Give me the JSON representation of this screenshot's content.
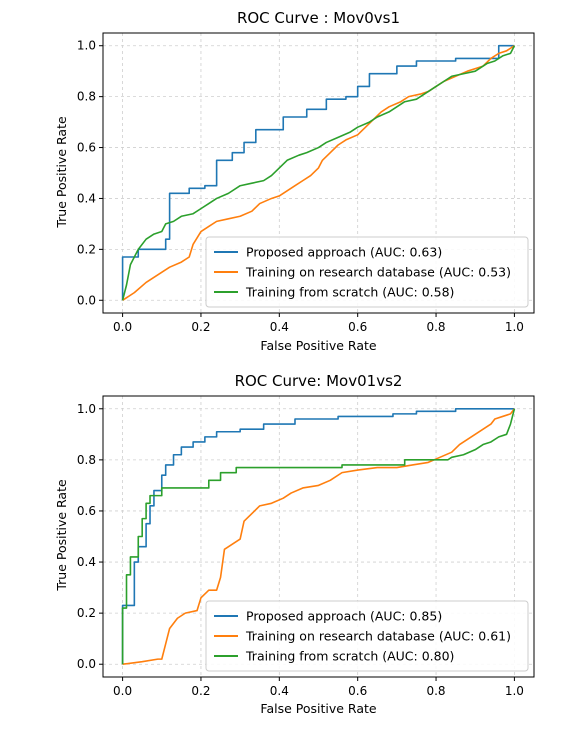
{
  "chart_data": [
    {
      "type": "line",
      "title": "ROC Curve : Mov0vs1",
      "xlabel": "False Positive Rate",
      "ylabel": "True Positive Rate",
      "xlim": [
        -0.05,
        1.05
      ],
      "ylim": [
        -0.05,
        1.05
      ],
      "grid": true,
      "legend_position": "lower-right",
      "xticks": [
        "0.0",
        "0.2",
        "0.4",
        "0.6",
        "0.8",
        "1.0"
      ],
      "yticks": [
        "0.0",
        "0.2",
        "0.4",
        "0.6",
        "0.8",
        "1.0"
      ],
      "series": [
        {
          "name": "Proposed approach (AUC: 0.63)",
          "color": "#1f77b4",
          "points": [
            [
              0,
              0
            ],
            [
              0,
              0.17
            ],
            [
              0.04,
              0.17
            ],
            [
              0.04,
              0.2
            ],
            [
              0.11,
              0.2
            ],
            [
              0.11,
              0.24
            ],
            [
              0.12,
              0.24
            ],
            [
              0.12,
              0.42
            ],
            [
              0.17,
              0.42
            ],
            [
              0.17,
              0.44
            ],
            [
              0.21,
              0.44
            ],
            [
              0.21,
              0.45
            ],
            [
              0.24,
              0.45
            ],
            [
              0.24,
              0.55
            ],
            [
              0.28,
              0.55
            ],
            [
              0.28,
              0.58
            ],
            [
              0.31,
              0.58
            ],
            [
              0.31,
              0.62
            ],
            [
              0.34,
              0.62
            ],
            [
              0.34,
              0.67
            ],
            [
              0.41,
              0.67
            ],
            [
              0.41,
              0.72
            ],
            [
              0.47,
              0.72
            ],
            [
              0.47,
              0.75
            ],
            [
              0.52,
              0.75
            ],
            [
              0.52,
              0.79
            ],
            [
              0.57,
              0.79
            ],
            [
              0.57,
              0.8
            ],
            [
              0.6,
              0.8
            ],
            [
              0.6,
              0.84
            ],
            [
              0.63,
              0.84
            ],
            [
              0.63,
              0.89
            ],
            [
              0.7,
              0.89
            ],
            [
              0.7,
              0.92
            ],
            [
              0.75,
              0.92
            ],
            [
              0.75,
              0.94
            ],
            [
              0.85,
              0.94
            ],
            [
              0.85,
              0.95
            ],
            [
              0.96,
              0.95
            ],
            [
              0.96,
              1.0
            ],
            [
              1.0,
              1.0
            ]
          ]
        },
        {
          "name": "Training on research database (AUC: 0.53)",
          "color": "#ff7f0e",
          "points": [
            [
              0,
              0
            ],
            [
              0.03,
              0.03
            ],
            [
              0.06,
              0.07
            ],
            [
              0.09,
              0.1
            ],
            [
              0.12,
              0.13
            ],
            [
              0.15,
              0.15
            ],
            [
              0.17,
              0.17
            ],
            [
              0.18,
              0.22
            ],
            [
              0.2,
              0.27
            ],
            [
              0.22,
              0.29
            ],
            [
              0.24,
              0.31
            ],
            [
              0.27,
              0.32
            ],
            [
              0.3,
              0.33
            ],
            [
              0.33,
              0.35
            ],
            [
              0.35,
              0.38
            ],
            [
              0.38,
              0.4
            ],
            [
              0.4,
              0.41
            ],
            [
              0.42,
              0.43
            ],
            [
              0.44,
              0.45
            ],
            [
              0.46,
              0.47
            ],
            [
              0.48,
              0.49
            ],
            [
              0.5,
              0.52
            ],
            [
              0.51,
              0.55
            ],
            [
              0.53,
              0.58
            ],
            [
              0.55,
              0.61
            ],
            [
              0.57,
              0.63
            ],
            [
              0.6,
              0.65
            ],
            [
              0.62,
              0.68
            ],
            [
              0.64,
              0.71
            ],
            [
              0.66,
              0.74
            ],
            [
              0.68,
              0.76
            ],
            [
              0.71,
              0.78
            ],
            [
              0.73,
              0.8
            ],
            [
              0.76,
              0.81
            ],
            [
              0.78,
              0.82
            ],
            [
              0.8,
              0.84
            ],
            [
              0.82,
              0.86
            ],
            [
              0.85,
              0.88
            ],
            [
              0.88,
              0.9
            ],
            [
              0.92,
              0.92
            ],
            [
              0.94,
              0.95
            ],
            [
              0.96,
              0.97
            ],
            [
              0.98,
              0.98
            ],
            [
              1.0,
              1.0
            ]
          ]
        },
        {
          "name": "Training from scratch (AUC: 0.58)",
          "color": "#2ca02c",
          "points": [
            [
              0,
              0
            ],
            [
              0.01,
              0.06
            ],
            [
              0.02,
              0.14
            ],
            [
              0.04,
              0.2
            ],
            [
              0.06,
              0.24
            ],
            [
              0.08,
              0.26
            ],
            [
              0.1,
              0.27
            ],
            [
              0.11,
              0.3
            ],
            [
              0.13,
              0.31
            ],
            [
              0.15,
              0.33
            ],
            [
              0.18,
              0.34
            ],
            [
              0.2,
              0.36
            ],
            [
              0.22,
              0.38
            ],
            [
              0.24,
              0.4
            ],
            [
              0.27,
              0.42
            ],
            [
              0.3,
              0.45
            ],
            [
              0.33,
              0.46
            ],
            [
              0.36,
              0.47
            ],
            [
              0.38,
              0.49
            ],
            [
              0.4,
              0.52
            ],
            [
              0.42,
              0.55
            ],
            [
              0.45,
              0.57
            ],
            [
              0.47,
              0.58
            ],
            [
              0.5,
              0.6
            ],
            [
              0.52,
              0.62
            ],
            [
              0.55,
              0.64
            ],
            [
              0.58,
              0.66
            ],
            [
              0.6,
              0.68
            ],
            [
              0.63,
              0.7
            ],
            [
              0.65,
              0.72
            ],
            [
              0.68,
              0.74
            ],
            [
              0.7,
              0.76
            ],
            [
              0.72,
              0.78
            ],
            [
              0.75,
              0.79
            ],
            [
              0.78,
              0.82
            ],
            [
              0.8,
              0.84
            ],
            [
              0.82,
              0.86
            ],
            [
              0.84,
              0.88
            ],
            [
              0.87,
              0.89
            ],
            [
              0.9,
              0.9
            ],
            [
              0.93,
              0.93
            ],
            [
              0.95,
              0.94
            ],
            [
              0.97,
              0.96
            ],
            [
              0.99,
              0.97
            ],
            [
              1.0,
              1.0
            ]
          ]
        }
      ]
    },
    {
      "type": "line",
      "title": "ROC Curve: Mov01vs2",
      "xlabel": "False Positive Rate",
      "ylabel": "True Positive Rate",
      "xlim": [
        -0.05,
        1.05
      ],
      "ylim": [
        -0.05,
        1.05
      ],
      "grid": true,
      "legend_position": "lower-right",
      "xticks": [
        "0.0",
        "0.2",
        "0.4",
        "0.6",
        "0.8",
        "1.0"
      ],
      "yticks": [
        "0.0",
        "0.2",
        "0.4",
        "0.6",
        "0.8",
        "1.0"
      ],
      "series": [
        {
          "name": "Proposed approach (AUC: 0.85)",
          "color": "#1f77b4",
          "points": [
            [
              0,
              0
            ],
            [
              0,
              0.23
            ],
            [
              0.03,
              0.23
            ],
            [
              0.03,
              0.4
            ],
            [
              0.04,
              0.4
            ],
            [
              0.04,
              0.46
            ],
            [
              0.06,
              0.46
            ],
            [
              0.06,
              0.55
            ],
            [
              0.07,
              0.55
            ],
            [
              0.07,
              0.62
            ],
            [
              0.08,
              0.62
            ],
            [
              0.08,
              0.68
            ],
            [
              0.1,
              0.68
            ],
            [
              0.1,
              0.74
            ],
            [
              0.11,
              0.74
            ],
            [
              0.11,
              0.78
            ],
            [
              0.13,
              0.78
            ],
            [
              0.13,
              0.82
            ],
            [
              0.15,
              0.82
            ],
            [
              0.15,
              0.85
            ],
            [
              0.18,
              0.85
            ],
            [
              0.18,
              0.87
            ],
            [
              0.21,
              0.87
            ],
            [
              0.21,
              0.89
            ],
            [
              0.24,
              0.89
            ],
            [
              0.24,
              0.91
            ],
            [
              0.3,
              0.91
            ],
            [
              0.3,
              0.92
            ],
            [
              0.36,
              0.92
            ],
            [
              0.36,
              0.94
            ],
            [
              0.44,
              0.94
            ],
            [
              0.44,
              0.96
            ],
            [
              0.55,
              0.96
            ],
            [
              0.55,
              0.97
            ],
            [
              0.69,
              0.97
            ],
            [
              0.69,
              0.98
            ],
            [
              0.75,
              0.98
            ],
            [
              0.75,
              0.99
            ],
            [
              0.85,
              0.99
            ],
            [
              0.85,
              1.0
            ],
            [
              1.0,
              1.0
            ]
          ]
        },
        {
          "name": "Training on research database (AUC: 0.61)",
          "color": "#ff7f0e",
          "points": [
            [
              0,
              0
            ],
            [
              0.05,
              0.01
            ],
            [
              0.09,
              0.02
            ],
            [
              0.1,
              0.02
            ],
            [
              0.11,
              0.08
            ],
            [
              0.12,
              0.14
            ],
            [
              0.14,
              0.18
            ],
            [
              0.16,
              0.2
            ],
            [
              0.19,
              0.21
            ],
            [
              0.2,
              0.26
            ],
            [
              0.22,
              0.29
            ],
            [
              0.24,
              0.29
            ],
            [
              0.25,
              0.34
            ],
            [
              0.26,
              0.45
            ],
            [
              0.28,
              0.47
            ],
            [
              0.3,
              0.49
            ],
            [
              0.31,
              0.56
            ],
            [
              0.33,
              0.59
            ],
            [
              0.35,
              0.62
            ],
            [
              0.38,
              0.63
            ],
            [
              0.41,
              0.65
            ],
            [
              0.43,
              0.67
            ],
            [
              0.46,
              0.69
            ],
            [
              0.5,
              0.7
            ],
            [
              0.53,
              0.72
            ],
            [
              0.56,
              0.75
            ],
            [
              0.6,
              0.76
            ],
            [
              0.65,
              0.77
            ],
            [
              0.7,
              0.77
            ],
            [
              0.74,
              0.78
            ],
            [
              0.78,
              0.79
            ],
            [
              0.81,
              0.81
            ],
            [
              0.84,
              0.83
            ],
            [
              0.86,
              0.86
            ],
            [
              0.88,
              0.88
            ],
            [
              0.9,
              0.9
            ],
            [
              0.92,
              0.92
            ],
            [
              0.94,
              0.94
            ],
            [
              0.95,
              0.96
            ],
            [
              0.97,
              0.97
            ],
            [
              0.99,
              0.98
            ],
            [
              1.0,
              1.0
            ]
          ]
        },
        {
          "name": "Training from scratch (AUC: 0.80)",
          "color": "#2ca02c",
          "points": [
            [
              0,
              0
            ],
            [
              0,
              0.22
            ],
            [
              0.01,
              0.22
            ],
            [
              0.01,
              0.35
            ],
            [
              0.02,
              0.35
            ],
            [
              0.02,
              0.42
            ],
            [
              0.04,
              0.42
            ],
            [
              0.04,
              0.5
            ],
            [
              0.05,
              0.5
            ],
            [
              0.05,
              0.57
            ],
            [
              0.06,
              0.57
            ],
            [
              0.06,
              0.63
            ],
            [
              0.07,
              0.63
            ],
            [
              0.07,
              0.66
            ],
            [
              0.1,
              0.66
            ],
            [
              0.1,
              0.69
            ],
            [
              0.22,
              0.69
            ],
            [
              0.22,
              0.72
            ],
            [
              0.25,
              0.72
            ],
            [
              0.25,
              0.75
            ],
            [
              0.29,
              0.75
            ],
            [
              0.29,
              0.77
            ],
            [
              0.56,
              0.77
            ],
            [
              0.56,
              0.78
            ],
            [
              0.72,
              0.78
            ],
            [
              0.72,
              0.8
            ],
            [
              0.83,
              0.8
            ],
            [
              0.84,
              0.81
            ],
            [
              0.87,
              0.82
            ],
            [
              0.9,
              0.84
            ],
            [
              0.92,
              0.86
            ],
            [
              0.94,
              0.87
            ],
            [
              0.96,
              0.89
            ],
            [
              0.98,
              0.9
            ],
            [
              0.99,
              0.94
            ],
            [
              1.0,
              1.0
            ]
          ]
        }
      ]
    }
  ]
}
